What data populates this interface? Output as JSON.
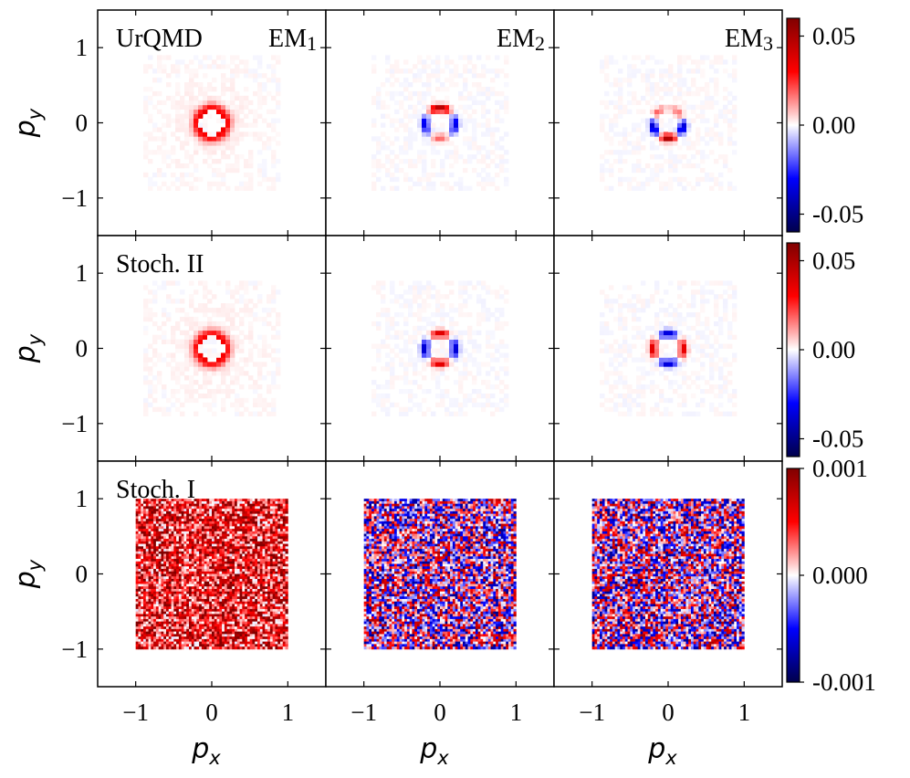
{
  "chart_data": {
    "type": "heatmap",
    "layout": "3x3 grid of 2D momentum-space histograms",
    "row_labels": [
      "UrQMD",
      "Stoch. II",
      "Stoch. I"
    ],
    "column_labels": [
      {
        "base": "EM",
        "sub": "1"
      },
      {
        "base": "EM",
        "sub": "2"
      },
      {
        "base": "EM",
        "sub": "3"
      }
    ],
    "xlabel": {
      "base": "p",
      "sub": "x"
    },
    "ylabel": {
      "base": "p",
      "sub": "y"
    },
    "xlim": [
      -1.5,
      1.5
    ],
    "ylim": [
      -1.5,
      1.5
    ],
    "x_tick_values": [
      -1,
      0,
      1
    ],
    "x_tick_labels": [
      "−1",
      "0",
      "1"
    ],
    "y_tick_values": [
      -1,
      0,
      1
    ],
    "y_tick_labels": [
      "−1",
      "0",
      "1"
    ],
    "colormap": "seismic",
    "colormap_stops": [
      "#00004c",
      "#0000ff",
      "#ffffff",
      "#ff0000",
      "#800000"
    ],
    "rows": [
      {
        "name": "UrQMD",
        "colorbar": {
          "min": -0.06,
          "max": 0.06,
          "ticks": [
            0.05,
            0.0,
            -0.05
          ],
          "tick_labels": [
            "0.05",
            "0.00",
            "-0.05"
          ]
        },
        "panels": [
          {
            "column": "EM1",
            "pattern": "ring",
            "ring_radius": 0.18,
            "ring_peak_value": 0.03,
            "inner_value": 0.0,
            "halo_value": 0.004
          },
          {
            "column": "EM2",
            "pattern": "ring_cos2phi",
            "ring_radius": 0.2,
            "amplitude": 0.05
          },
          {
            "column": "EM3",
            "pattern": "ring_mixed",
            "ring_radius": 0.2,
            "amplitude": 0.05
          }
        ]
      },
      {
        "name": "Stoch. II",
        "colorbar": {
          "min": -0.06,
          "max": 0.06,
          "ticks": [
            0.05,
            0.0,
            -0.05
          ],
          "tick_labels": [
            "0.05",
            "0.00",
            "-0.05"
          ]
        },
        "panels": [
          {
            "column": "EM1",
            "pattern": "ring",
            "ring_radius": 0.18,
            "ring_peak_value": 0.03,
            "inner_value": 0.0,
            "halo_value": 0.004
          },
          {
            "column": "EM2",
            "pattern": "ring_cos2phi_weak",
            "ring_radius": 0.2,
            "amplitude": 0.05
          },
          {
            "column": "EM3",
            "pattern": "ring_cos2phi_flipped",
            "ring_radius": 0.2,
            "amplitude": 0.05
          }
        ]
      },
      {
        "name": "Stoch. I",
        "colorbar": {
          "min": -0.001,
          "max": 0.001,
          "ticks": [
            0.001,
            0.0,
            -0.001
          ],
          "tick_labels": [
            "0.001",
            "0.000",
            "-0.001"
          ]
        },
        "panels": [
          {
            "column": "EM1",
            "pattern": "uniform_noise",
            "square_range": [
              -1,
              1
            ],
            "mean": 0.0005,
            "noise": 0.0004
          },
          {
            "column": "EM2",
            "pattern": "uniform_noise",
            "square_range": [
              -1,
              1
            ],
            "mean": 0.0,
            "noise": 0.0006
          },
          {
            "column": "EM3",
            "pattern": "uniform_noise",
            "square_range": [
              -1,
              1
            ],
            "mean": 0.0,
            "noise": 0.0006
          }
        ]
      }
    ]
  }
}
